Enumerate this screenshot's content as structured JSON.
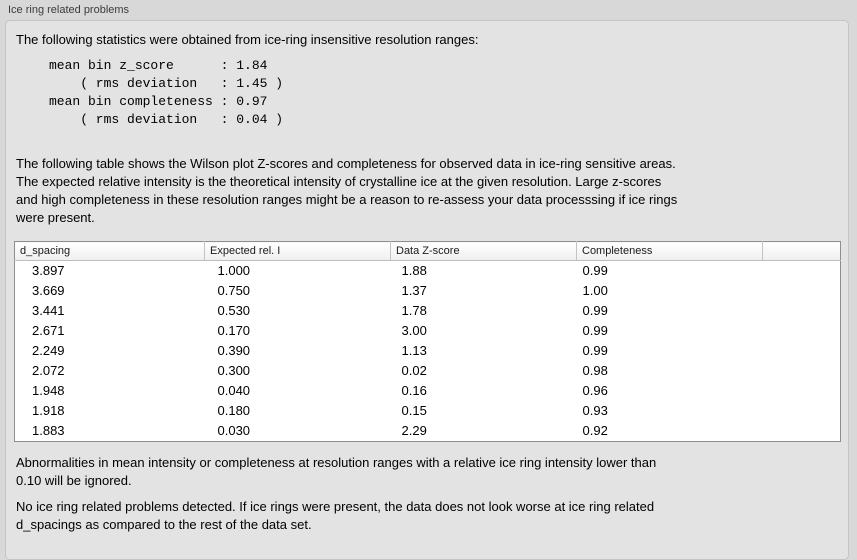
{
  "panel": {
    "label": "Ice ring related problems"
  },
  "intro": "The following statistics were obtained from ice-ring insensitive resolution ranges:",
  "stats_block": "mean bin z_score      : 1.84\n    ( rms deviation   : 1.45 )\nmean bin completeness : 0.97\n    ( rms deviation   : 0.04 )",
  "stats": {
    "mean_bin_z_score": "1.84",
    "z_score_rms_deviation": "1.45",
    "mean_bin_completeness": "0.97",
    "completeness_rms_deviation": "0.04"
  },
  "table_intro": "The following table shows the Wilson plot Z-scores and completeness for observed data in ice-ring sensitive areas.\nThe expected relative intensity is the theoretical intensity of crystalline ice at the given resolution. Large z-scores\nand high completeness in these resolution ranges might be a reason to re-assess your data processsing if ice rings\nwere present.",
  "table": {
    "columns": [
      "d_spacing",
      "Expected rel. I",
      "Data Z-score",
      "Completeness",
      ""
    ],
    "rows": [
      [
        "3.897",
        "1.000",
        "1.88",
        "0.99"
      ],
      [
        "3.669",
        "0.750",
        "1.37",
        "1.00"
      ],
      [
        "3.441",
        "0.530",
        "1.78",
        "0.99"
      ],
      [
        "2.671",
        "0.170",
        "3.00",
        "0.99"
      ],
      [
        "2.249",
        "0.390",
        "1.13",
        "0.99"
      ],
      [
        "2.072",
        "0.300",
        "0.02",
        "0.98"
      ],
      [
        "1.948",
        "0.040",
        "0.16",
        "0.96"
      ],
      [
        "1.918",
        "0.180",
        "0.15",
        "0.93"
      ],
      [
        "1.883",
        "0.030",
        "2.29",
        "0.92"
      ]
    ]
  },
  "note_ignore": "Abnormalities in mean intensity or completeness at resolution ranges with a relative ice ring intensity lower than\n0.10 will be ignored.",
  "conclusion": "No ice ring related problems detected. If ice rings were present, the data does not look worse at ice ring related\nd_spacings as compared to the rest of the data set.",
  "colors": {
    "window_background": "#d8d8d8",
    "panel_background": "#e3e3e3",
    "table_background": "#ffffff",
    "text": "#000000"
  }
}
